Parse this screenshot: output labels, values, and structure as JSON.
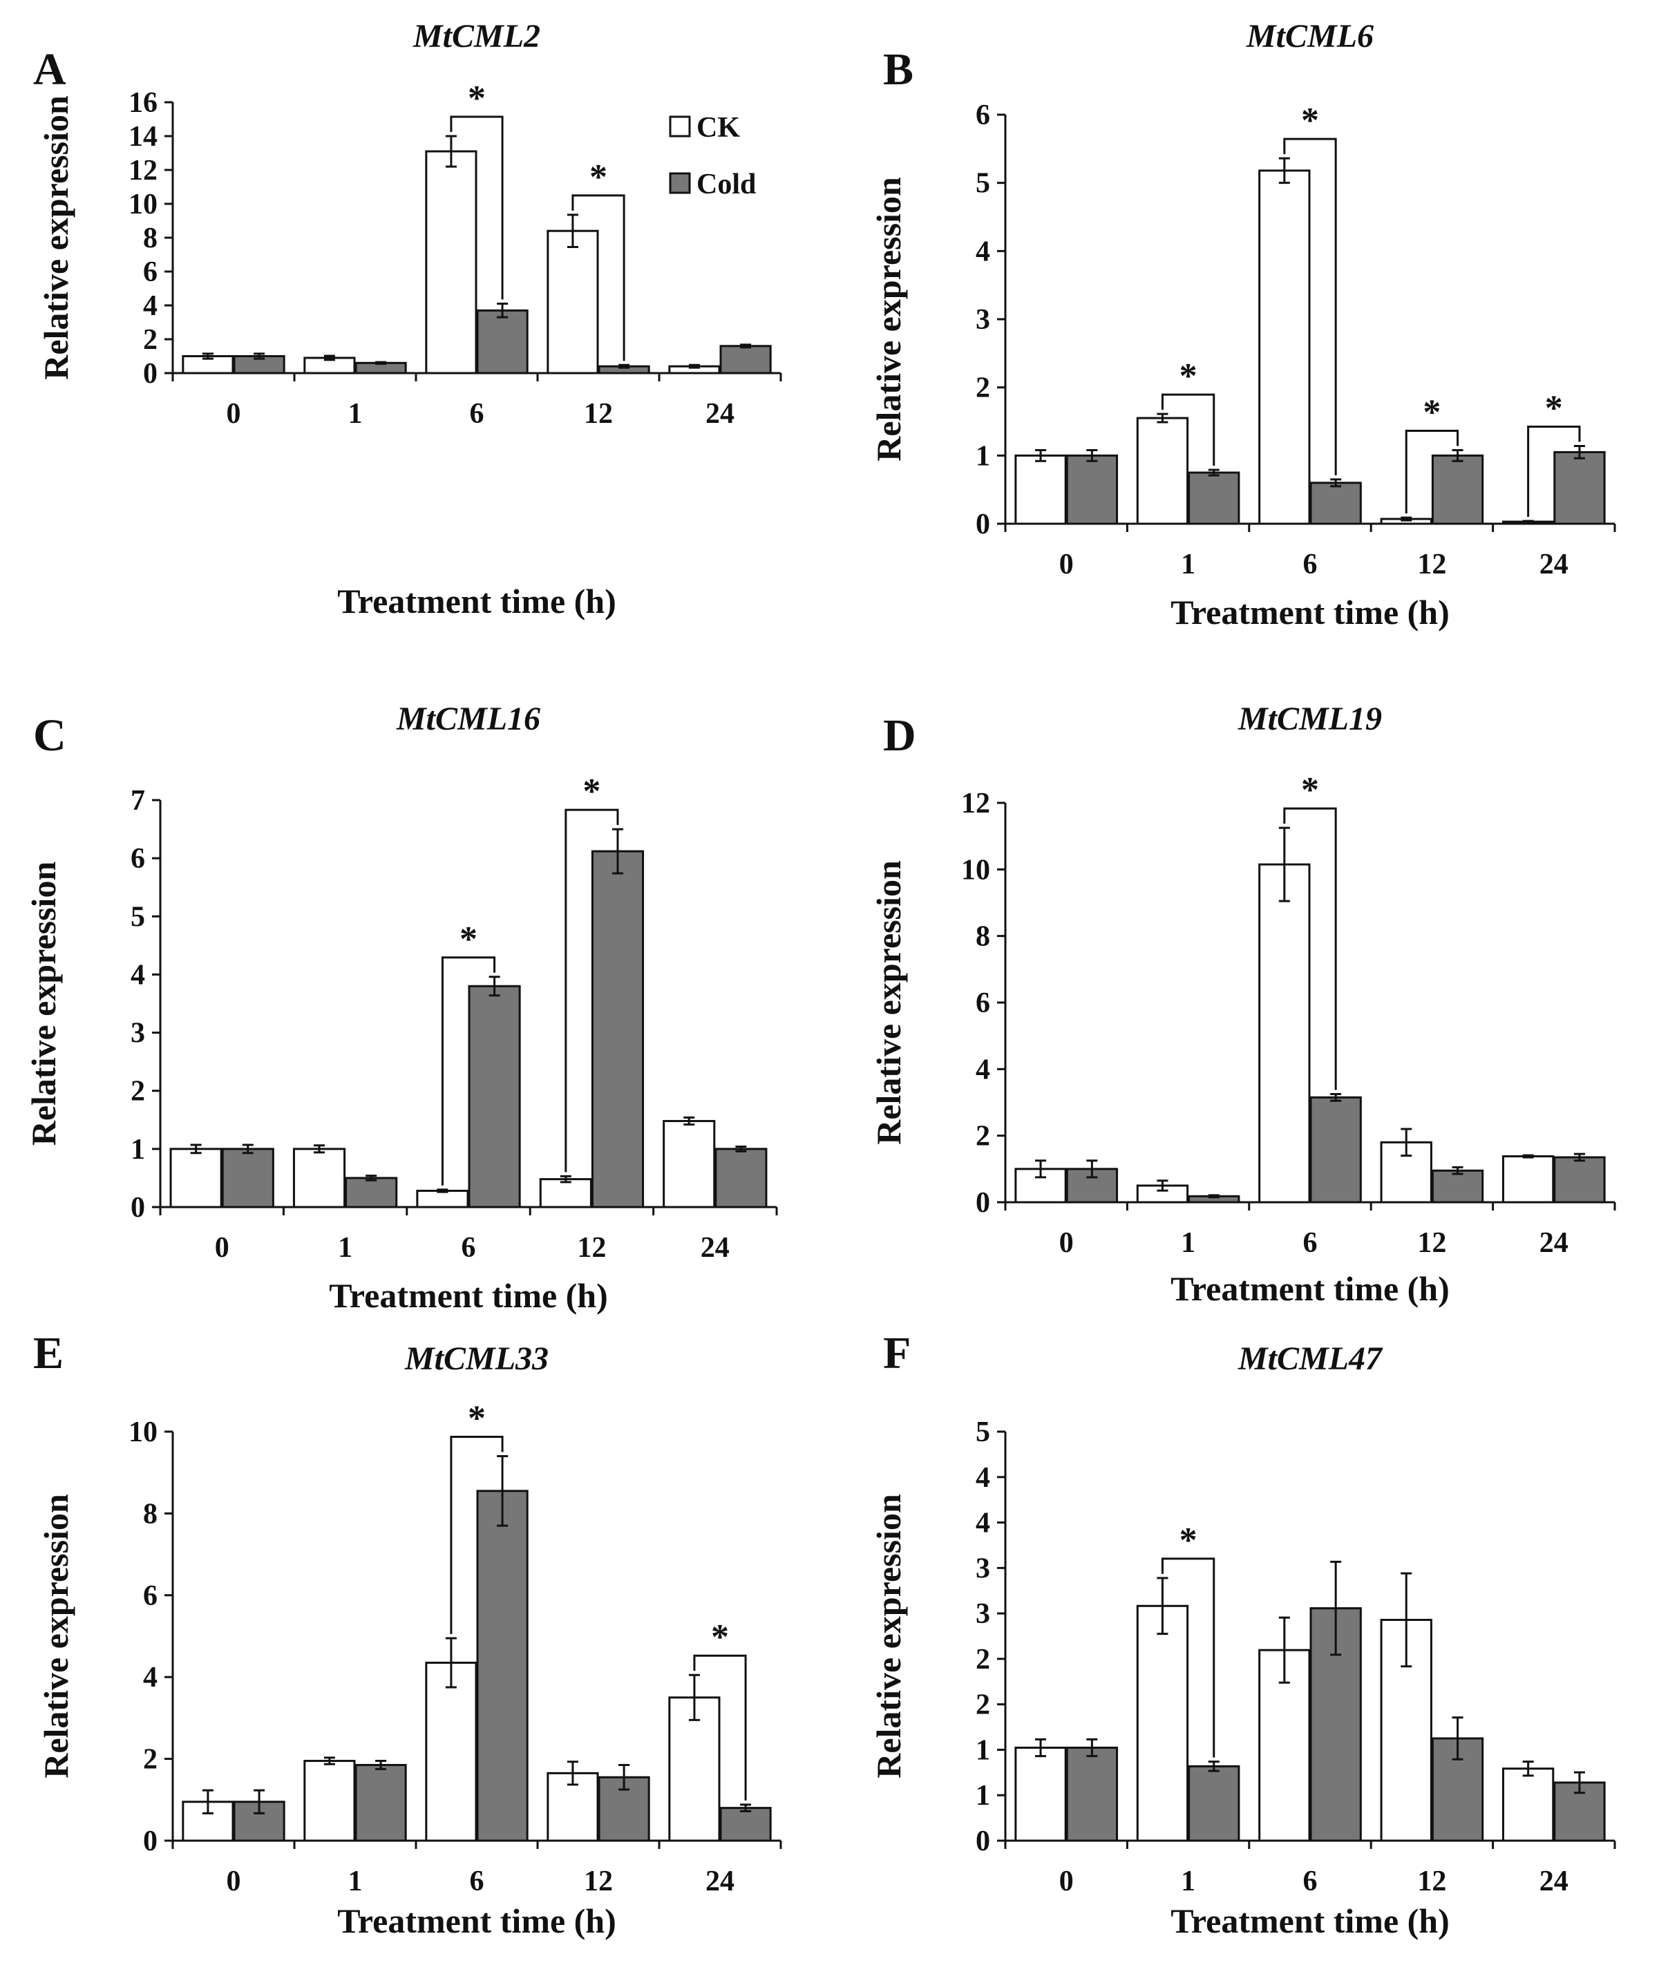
{
  "chart_data": [
    {
      "panel": "A",
      "title": "MtCML2",
      "type": "bar",
      "xlabel": "Treatment time (h)",
      "ylabel": "Relative expression",
      "categories": [
        "0",
        "1",
        "6",
        "12",
        "24"
      ],
      "ylim": [
        0,
        16
      ],
      "yticks": [
        "0",
        "2",
        "4",
        "6",
        "8",
        "10",
        "12",
        "14",
        "16"
      ],
      "series": [
        {
          "name": "CK",
          "color": "#ffffff",
          "values": [
            1.0,
            0.9,
            13.1,
            8.4,
            0.4
          ],
          "errors": [
            0.15,
            0.12,
            0.9,
            0.95,
            0.08
          ]
        },
        {
          "name": "Cold",
          "color": "#777777",
          "values": [
            1.0,
            0.6,
            3.7,
            0.4,
            1.6
          ],
          "errors": [
            0.15,
            0.05,
            0.4,
            0.08,
            0.08
          ]
        }
      ],
      "significance": [
        {
          "category": "6",
          "label": "*"
        },
        {
          "category": "12",
          "label": "*"
        }
      ],
      "legend": {
        "position": "top-right",
        "entries": [
          "CK",
          "Cold"
        ]
      }
    },
    {
      "panel": "B",
      "title": "MtCML6",
      "type": "bar",
      "xlabel": "Treatment time (h)",
      "ylabel": "Relative expression",
      "categories": [
        "0",
        "1",
        "6",
        "12",
        "24"
      ],
      "ylim": [
        0,
        6
      ],
      "yticks": [
        "0",
        "1",
        "2",
        "3",
        "4",
        "5",
        "6"
      ],
      "series": [
        {
          "name": "CK",
          "color": "#ffffff",
          "values": [
            1.0,
            1.55,
            5.18,
            0.07,
            0.03
          ],
          "errors": [
            0.08,
            0.06,
            0.18,
            0.02,
            0.01
          ]
        },
        {
          "name": "Cold",
          "color": "#777777",
          "values": [
            1.0,
            0.75,
            0.6,
            1.0,
            1.05
          ],
          "errors": [
            0.08,
            0.04,
            0.05,
            0.08,
            0.09
          ]
        }
      ],
      "significance": [
        {
          "category": "1",
          "label": "*"
        },
        {
          "category": "6",
          "label": "*"
        },
        {
          "category": "12",
          "label": "*"
        },
        {
          "category": "24",
          "label": "*"
        }
      ]
    },
    {
      "panel": "C",
      "title": "MtCML16",
      "type": "bar",
      "xlabel": "Treatment time (h)",
      "ylabel": "Relative expression",
      "categories": [
        "0",
        "1",
        "6",
        "12",
        "24"
      ],
      "ylim": [
        0,
        7
      ],
      "yticks": [
        "0",
        "1",
        "2",
        "3",
        "4",
        "5",
        "6",
        "7"
      ],
      "series": [
        {
          "name": "CK",
          "color": "#ffffff",
          "values": [
            1.0,
            1.0,
            0.28,
            0.48,
            1.48
          ],
          "errors": [
            0.07,
            0.06,
            0.02,
            0.05,
            0.06
          ]
        },
        {
          "name": "Cold",
          "color": "#777777",
          "values": [
            1.0,
            0.5,
            3.8,
            6.12,
            1.0
          ],
          "errors": [
            0.07,
            0.04,
            0.16,
            0.38,
            0.04
          ]
        }
      ],
      "significance": [
        {
          "category": "6",
          "label": "*"
        },
        {
          "category": "12",
          "label": "*"
        }
      ]
    },
    {
      "panel": "D",
      "title": "MtCML19",
      "type": "bar",
      "xlabel": "Treatment time (h)",
      "ylabel": "Relative expression",
      "categories": [
        "0",
        "1",
        "6",
        "12",
        "24"
      ],
      "ylim": [
        0,
        12
      ],
      "yticks": [
        "0",
        "2",
        "4",
        "6",
        "8",
        "10",
        "12"
      ],
      "series": [
        {
          "name": "CK",
          "color": "#ffffff",
          "values": [
            1.0,
            0.5,
            10.15,
            1.8,
            1.38
          ],
          "errors": [
            0.25,
            0.15,
            1.1,
            0.4,
            0.03
          ]
        },
        {
          "name": "Cold",
          "color": "#777777",
          "values": [
            1.0,
            0.18,
            3.15,
            0.95,
            1.35
          ],
          "errors": [
            0.25,
            0.03,
            0.1,
            0.1,
            0.1
          ]
        }
      ],
      "significance": [
        {
          "category": "6",
          "label": "*"
        }
      ]
    },
    {
      "panel": "E",
      "title": "MtCML33",
      "type": "bar",
      "xlabel": "Treatment time (h)",
      "ylabel": "Relative expression",
      "categories": [
        "0",
        "1",
        "6",
        "12",
        "24"
      ],
      "ylim": [
        0,
        10
      ],
      "yticks": [
        "0",
        "2",
        "4",
        "6",
        "8",
        "10"
      ],
      "series": [
        {
          "name": "CK",
          "color": "#ffffff",
          "values": [
            0.95,
            1.95,
            4.35,
            1.65,
            3.5
          ],
          "errors": [
            0.28,
            0.08,
            0.6,
            0.28,
            0.55
          ]
        },
        {
          "name": "Cold",
          "color": "#777777",
          "values": [
            0.95,
            1.85,
            8.55,
            1.55,
            0.8
          ],
          "errors": [
            0.28,
            0.1,
            0.85,
            0.3,
            0.08
          ]
        }
      ],
      "significance": [
        {
          "category": "6",
          "label": "*"
        },
        {
          "category": "24",
          "label": "*"
        }
      ]
    },
    {
      "panel": "F",
      "title": "MtCML47",
      "type": "bar",
      "xlabel": "Treatment time (h)",
      "ylabel": "Relative expression",
      "categories": [
        "0",
        "1",
        "6",
        "12",
        "24"
      ],
      "ylim": [
        0,
        8.8
      ],
      "yticks": [
        "0",
        "1",
        "1",
        "2",
        "2",
        "3",
        "3",
        "4",
        "4",
        "5"
      ],
      "series": [
        {
          "name": "CK",
          "color": "#ffffff",
          "values": [
            2.0,
            5.05,
            4.1,
            4.75,
            1.55
          ],
          "errors": [
            0.18,
            0.6,
            0.7,
            1.0,
            0.15
          ]
        },
        {
          "name": "Cold",
          "color": "#777777",
          "values": [
            2.0,
            1.6,
            5.0,
            2.2,
            1.25
          ],
          "errors": [
            0.18,
            0.1,
            1.0,
            0.45,
            0.22
          ]
        }
      ],
      "significance": [
        {
          "category": "1",
          "label": "*"
        }
      ]
    }
  ]
}
